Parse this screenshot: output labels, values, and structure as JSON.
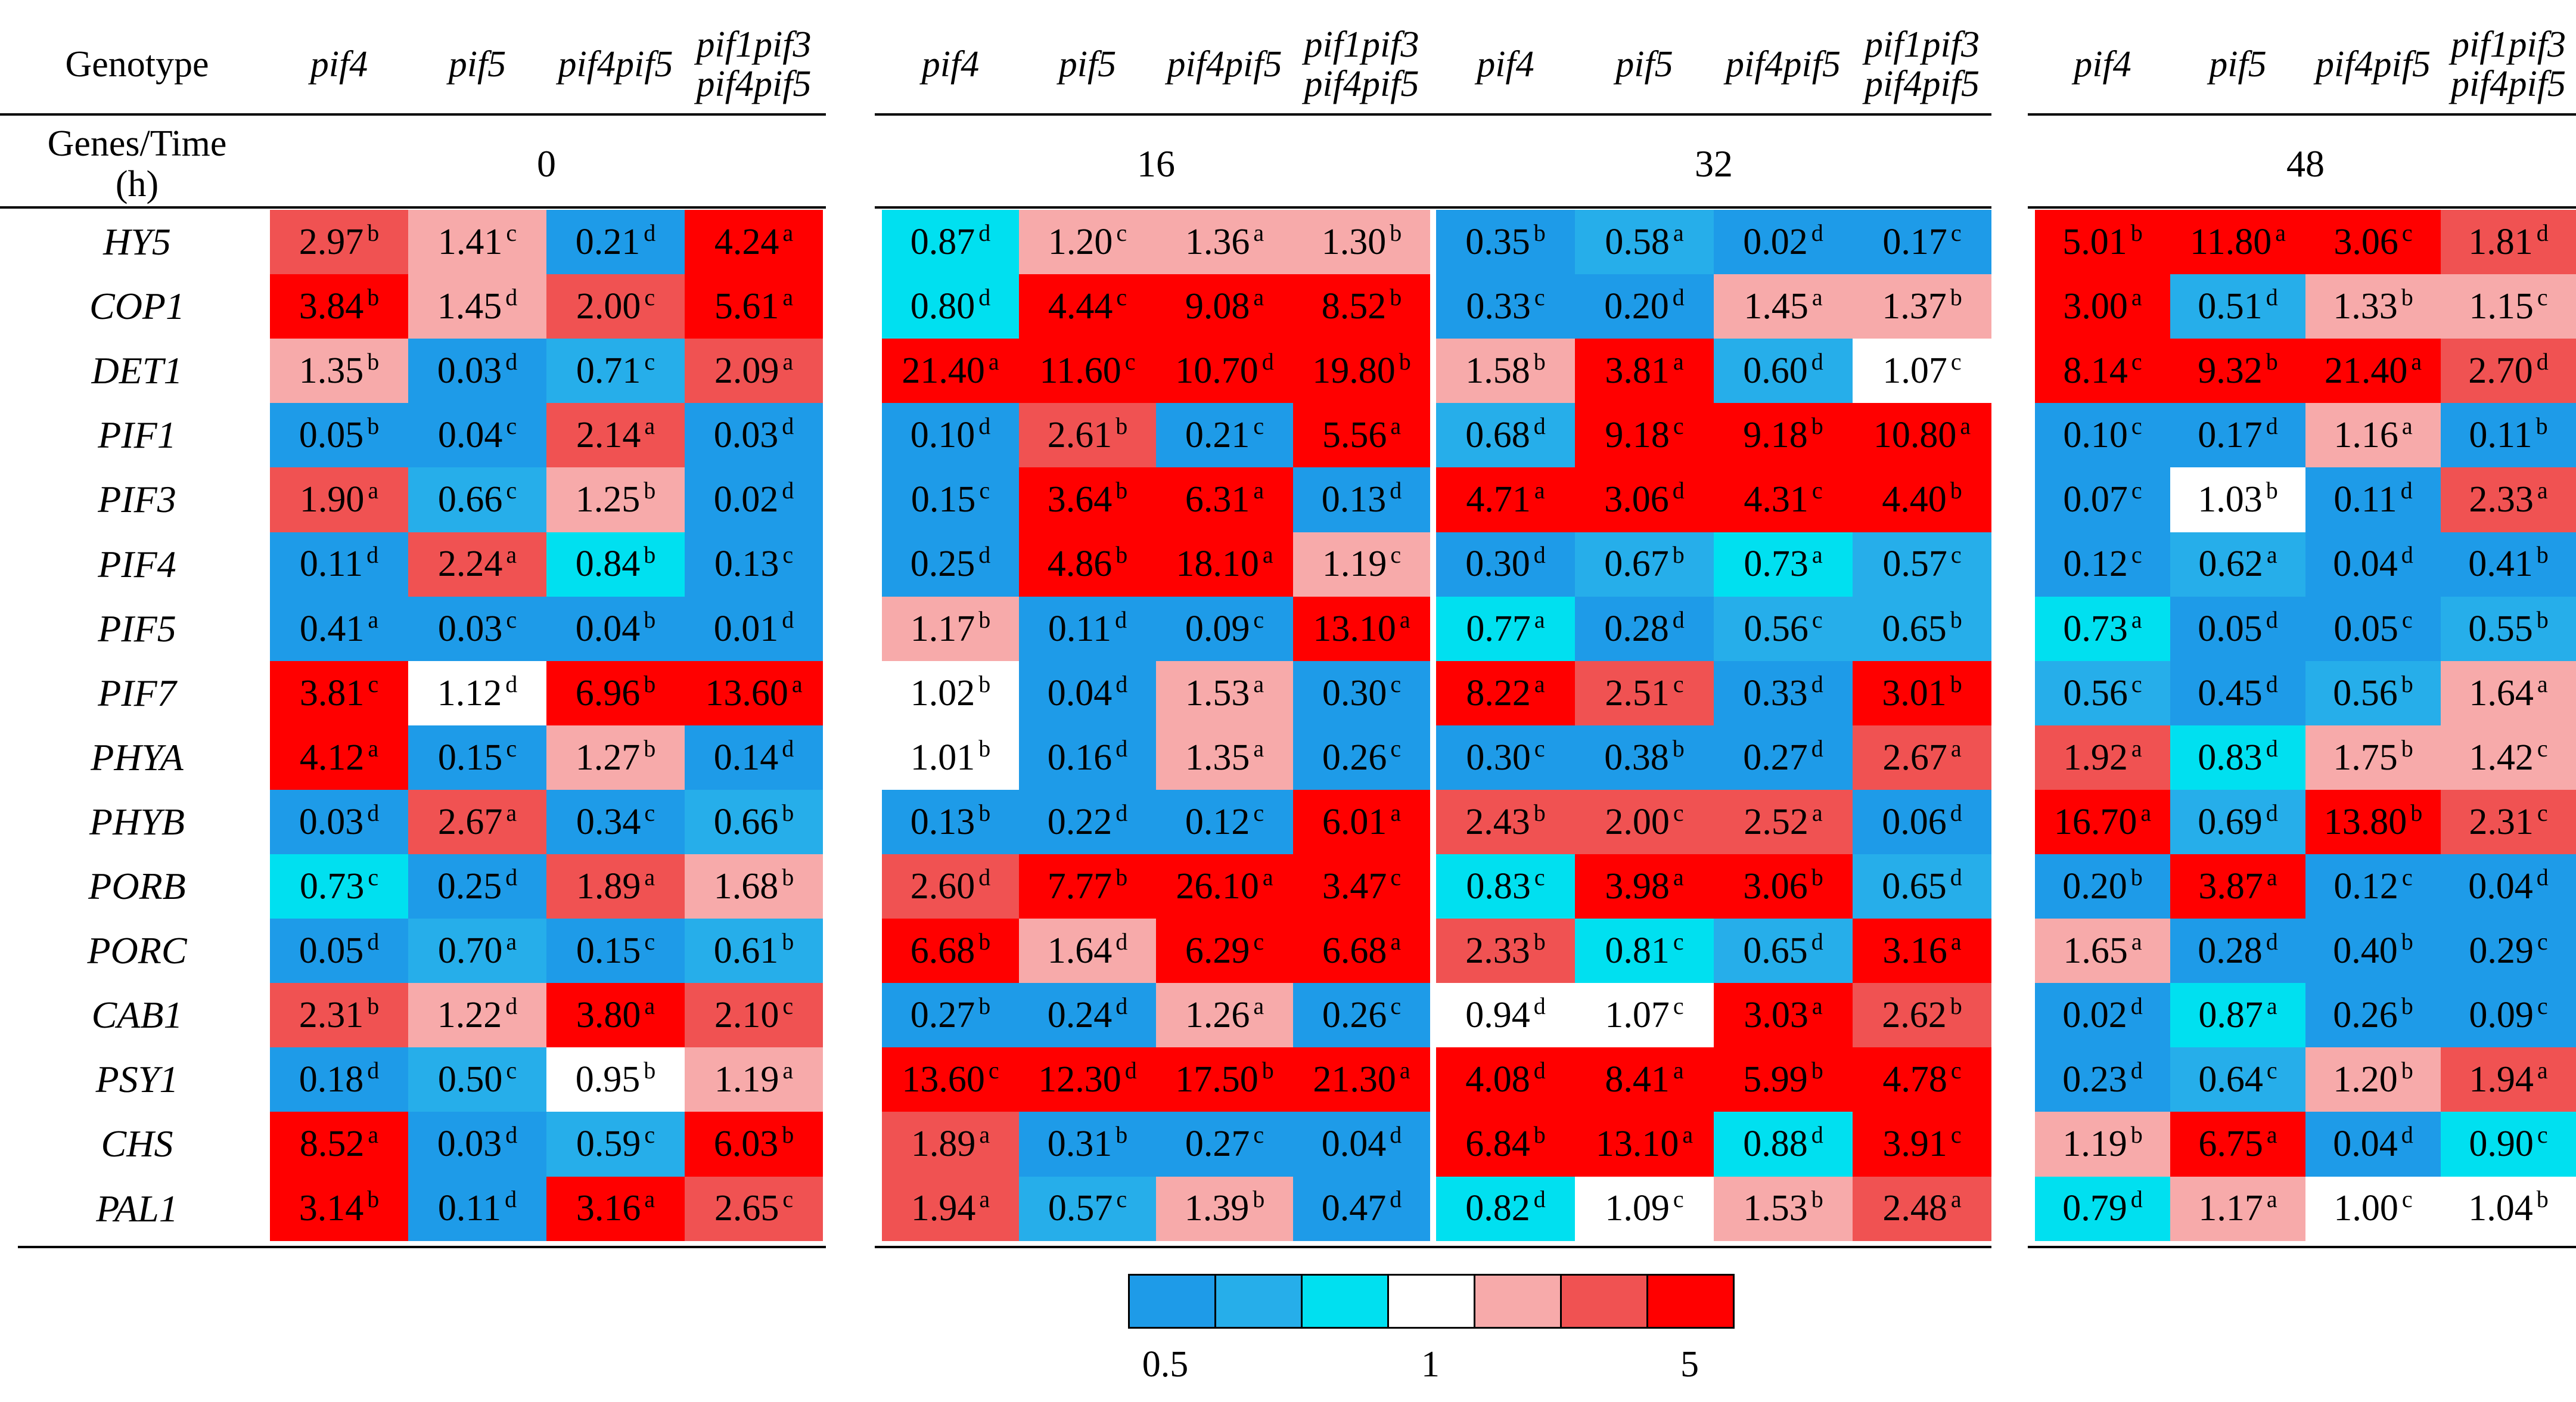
{
  "chart_data": {
    "type": "heatmap",
    "row_header_label": "Genotype",
    "time_header_label": "Genes/Time\n(h)",
    "genotypes": [
      "pif4",
      "pif5",
      "pif4pif5",
      "pif1pif3\npif4pif5"
    ],
    "time_points": [
      "0",
      "16",
      "32",
      "48"
    ],
    "genes": [
      "HY5",
      "COP1",
      "DET1",
      "PIF1",
      "PIF3",
      "PIF4",
      "PIF5",
      "PIF7",
      "PHYA",
      "PHYB",
      "PORB",
      "PORC",
      "CAB1",
      "PSY1",
      "CHS",
      "PAL1"
    ],
    "values": [
      [
        [
          2.97,
          1.41,
          0.21,
          4.24
        ],
        [
          0.87,
          1.2,
          1.36,
          1.3
        ],
        [
          0.35,
          0.58,
          0.02,
          0.17
        ],
        [
          5.01,
          11.8,
          3.06,
          1.81
        ]
      ],
      [
        [
          3.84,
          1.45,
          2.0,
          5.61
        ],
        [
          0.8,
          4.44,
          9.08,
          8.52
        ],
        [
          0.33,
          0.2,
          1.45,
          1.37
        ],
        [
          3.0,
          0.51,
          1.33,
          1.15
        ]
      ],
      [
        [
          1.35,
          0.03,
          0.71,
          2.09
        ],
        [
          21.4,
          11.6,
          10.7,
          19.8
        ],
        [
          1.58,
          3.81,
          0.6,
          1.07
        ],
        [
          8.14,
          9.32,
          21.4,
          2.7
        ]
      ],
      [
        [
          0.05,
          0.04,
          2.14,
          0.03
        ],
        [
          0.1,
          2.61,
          0.21,
          5.56
        ],
        [
          0.68,
          9.18,
          9.18,
          10.8
        ],
        [
          0.1,
          0.17,
          1.16,
          0.11
        ]
      ],
      [
        [
          1.9,
          0.66,
          1.25,
          0.02
        ],
        [
          0.15,
          3.64,
          6.31,
          0.13
        ],
        [
          4.71,
          3.06,
          4.31,
          4.4
        ],
        [
          0.07,
          1.03,
          0.11,
          2.33
        ]
      ],
      [
        [
          0.11,
          2.24,
          0.84,
          0.13
        ],
        [
          0.25,
          4.86,
          18.1,
          1.19
        ],
        [
          0.3,
          0.67,
          0.73,
          0.57
        ],
        [
          0.12,
          0.62,
          0.04,
          0.41
        ]
      ],
      [
        [
          0.41,
          0.03,
          0.04,
          0.01
        ],
        [
          1.17,
          0.11,
          0.09,
          13.1
        ],
        [
          0.77,
          0.28,
          0.56,
          0.65
        ],
        [
          0.73,
          0.05,
          0.05,
          0.55
        ]
      ],
      [
        [
          3.81,
          1.12,
          6.96,
          13.6
        ],
        [
          1.02,
          0.04,
          1.53,
          0.3
        ],
        [
          8.22,
          2.51,
          0.33,
          3.01
        ],
        [
          0.56,
          0.45,
          0.56,
          1.64
        ]
      ],
      [
        [
          4.12,
          0.15,
          1.27,
          0.14
        ],
        [
          1.01,
          0.16,
          1.35,
          0.26
        ],
        [
          0.3,
          0.38,
          0.27,
          2.67
        ],
        [
          1.92,
          0.83,
          1.75,
          1.42
        ]
      ],
      [
        [
          0.03,
          2.67,
          0.34,
          0.66
        ],
        [
          0.13,
          0.22,
          0.12,
          6.01
        ],
        [
          2.43,
          2.0,
          2.52,
          0.06
        ],
        [
          16.7,
          0.69,
          13.8,
          2.31
        ]
      ],
      [
        [
          0.73,
          0.25,
          1.89,
          1.68
        ],
        [
          2.6,
          7.77,
          26.1,
          3.47
        ],
        [
          0.83,
          3.98,
          3.06,
          0.65
        ],
        [
          0.2,
          3.87,
          0.12,
          0.04
        ]
      ],
      [
        [
          0.05,
          0.7,
          0.15,
          0.61
        ],
        [
          6.68,
          1.64,
          6.29,
          6.68
        ],
        [
          2.33,
          0.81,
          0.65,
          3.16
        ],
        [
          1.65,
          0.28,
          0.4,
          0.29
        ]
      ],
      [
        [
          2.31,
          1.22,
          3.8,
          2.1
        ],
        [
          0.27,
          0.24,
          1.26,
          0.26
        ],
        [
          0.94,
          1.07,
          3.03,
          2.62
        ],
        [
          0.02,
          0.87,
          0.26,
          0.09
        ]
      ],
      [
        [
          0.18,
          0.5,
          0.95,
          1.19
        ],
        [
          13.6,
          12.3,
          17.5,
          21.3
        ],
        [
          4.08,
          8.41,
          5.99,
          4.78
        ],
        [
          0.23,
          0.64,
          1.2,
          1.94
        ]
      ],
      [
        [
          8.52,
          0.03,
          0.59,
          6.03
        ],
        [
          1.89,
          0.31,
          0.27,
          0.04
        ],
        [
          6.84,
          13.1,
          0.88,
          3.91
        ],
        [
          1.19,
          6.75,
          0.04,
          0.9
        ]
      ],
      [
        [
          3.14,
          0.11,
          3.16,
          2.65
        ],
        [
          1.94,
          0.57,
          1.39,
          0.47
        ],
        [
          0.82,
          1.09,
          1.53,
          2.48
        ],
        [
          0.79,
          1.17,
          1.0,
          1.04
        ]
      ]
    ],
    "labels": [
      [
        [
          "2.97",
          "1.41",
          "0.21",
          "4.24"
        ],
        [
          "0.87",
          "1.20",
          "1.36",
          "1.30"
        ],
        [
          "0.35",
          "0.58",
          "0.02",
          "0.17"
        ],
        [
          "5.01",
          "11.80",
          "3.06",
          "1.81"
        ]
      ],
      [
        [
          "3.84",
          "1.45",
          "2.00",
          "5.61"
        ],
        [
          "0.80",
          "4.44",
          "9.08",
          "8.52"
        ],
        [
          "0.33",
          "0.20",
          "1.45",
          "1.37"
        ],
        [
          "3.00",
          "0.51",
          "1.33",
          "1.15"
        ]
      ],
      [
        [
          "1.35",
          "0.03",
          "0.71",
          "2.09"
        ],
        [
          "21.40",
          "11.60",
          "10.70",
          "19.80"
        ],
        [
          "1.58",
          "3.81",
          "0.60",
          "1.07"
        ],
        [
          "8.14",
          "9.32",
          "21.40",
          "2.70"
        ]
      ],
      [
        [
          "0.05",
          "0.04",
          "2.14",
          "0.03"
        ],
        [
          "0.10",
          "2.61",
          "0.21",
          "5.56"
        ],
        [
          "0.68",
          "9.18",
          "9.18",
          "10.80"
        ],
        [
          "0.10",
          "0.17",
          "1.16",
          "0.11"
        ]
      ],
      [
        [
          "1.90",
          "0.66",
          "1.25",
          "0.02"
        ],
        [
          "0.15",
          "3.64",
          "6.31",
          "0.13"
        ],
        [
          "4.71",
          "3.06",
          "4.31",
          "4.40"
        ],
        [
          "0.07",
          "1.03",
          "0.11",
          "2.33"
        ]
      ],
      [
        [
          "0.11",
          "2.24",
          "0.84",
          "0.13"
        ],
        [
          "0.25",
          "4.86",
          "18.10",
          "1.19"
        ],
        [
          "0.30",
          "0.67",
          "0.73",
          "0.57"
        ],
        [
          "0.12",
          "0.62",
          "0.04",
          "0.41"
        ]
      ],
      [
        [
          "0.41",
          "0.03",
          "0.04",
          "0.01"
        ],
        [
          "1.17",
          "0.11",
          "0.09",
          "13.10"
        ],
        [
          "0.77",
          "0.28",
          "0.56",
          "0.65"
        ],
        [
          "0.73",
          "0.05",
          "0.05",
          "0.55"
        ]
      ],
      [
        [
          "3.81",
          "1.12",
          "6.96",
          "13.60"
        ],
        [
          "1.02",
          "0.04",
          "1.53",
          "0.30"
        ],
        [
          "8.22",
          "2.51",
          "0.33",
          "3.01"
        ],
        [
          "0.56",
          "0.45",
          "0.56",
          "1.64"
        ]
      ],
      [
        [
          "4.12",
          "0.15",
          "1.27",
          "0.14"
        ],
        [
          "1.01",
          "0.16",
          "1.35",
          "0.26"
        ],
        [
          "0.30",
          "0.38",
          "0.27",
          "2.67"
        ],
        [
          "1.92",
          "0.83",
          "1.75",
          "1.42"
        ]
      ],
      [
        [
          "0.03",
          "2.67",
          "0.34",
          "0.66"
        ],
        [
          "0.13",
          "0.22",
          "0.12",
          "6.01"
        ],
        [
          "2.43",
          "2.00",
          "2.52",
          "0.06"
        ],
        [
          "16.70",
          "0.69",
          "13.80",
          "2.31"
        ]
      ],
      [
        [
          "0.73",
          "0.25",
          "1.89",
          "1.68"
        ],
        [
          "2.60",
          "7.77",
          "26.10",
          "3.47"
        ],
        [
          "0.83",
          "3.98",
          "3.06",
          "0.65"
        ],
        [
          "0.20",
          "3.87",
          "0.12",
          "0.04"
        ]
      ],
      [
        [
          "0.05",
          "0.70",
          "0.15",
          "0.61"
        ],
        [
          "6.68",
          "1.64",
          "6.29",
          "6.68"
        ],
        [
          "2.33",
          "0.81",
          "0.65",
          "3.16"
        ],
        [
          "1.65",
          "0.28",
          "0.40",
          "0.29"
        ]
      ],
      [
        [
          "2.31",
          "1.22",
          "3.80",
          "2.10"
        ],
        [
          "0.27",
          "0.24",
          "1.26",
          "0.26"
        ],
        [
          "0.94",
          "1.07",
          "3.03",
          "2.62"
        ],
        [
          "0.02",
          "0.87",
          "0.26",
          "0.09"
        ]
      ],
      [
        [
          "0.18",
          "0.50",
          "0.95",
          "1.19"
        ],
        [
          "13.60",
          "12.30",
          "17.50",
          "21.30"
        ],
        [
          "4.08",
          "8.41",
          "5.99",
          "4.78"
        ],
        [
          "0.23",
          "0.64",
          "1.20",
          "1.94"
        ]
      ],
      [
        [
          "8.52",
          "0.03",
          "0.59",
          "6.03"
        ],
        [
          "1.89",
          "0.31",
          "0.27",
          "0.04"
        ],
        [
          "6.84",
          "13.10",
          "0.88",
          "3.91"
        ],
        [
          "1.19",
          "6.75",
          "0.04",
          "0.90"
        ]
      ],
      [
        [
          "3.14",
          "0.11",
          "3.16",
          "2.65"
        ],
        [
          "1.94",
          "0.57",
          "1.39",
          "0.47"
        ],
        [
          "0.82",
          "1.09",
          "1.53",
          "2.48"
        ],
        [
          "0.79",
          "1.17",
          "1.00",
          "1.04"
        ]
      ]
    ],
    "letters": [
      [
        [
          "b",
          "c",
          "d",
          "a"
        ],
        [
          "d",
          "c",
          "a",
          "b"
        ],
        [
          "b",
          "a",
          "d",
          "c"
        ],
        [
          "b",
          "a",
          "c",
          "d"
        ]
      ],
      [
        [
          "b",
          "d",
          "c",
          "a"
        ],
        [
          "d",
          "c",
          "a",
          "b"
        ],
        [
          "c",
          "d",
          "a",
          "b"
        ],
        [
          "a",
          "d",
          "b",
          "c"
        ]
      ],
      [
        [
          "b",
          "d",
          "c",
          "a"
        ],
        [
          "a",
          "c",
          "d",
          "b"
        ],
        [
          "b",
          "a",
          "d",
          "c"
        ],
        [
          "c",
          "b",
          "a",
          "d"
        ]
      ],
      [
        [
          "b",
          "c",
          "a",
          "d"
        ],
        [
          "d",
          "b",
          "c",
          "a"
        ],
        [
          "d",
          "c",
          "b",
          "a"
        ],
        [
          "c",
          "d",
          "a",
          "b"
        ]
      ],
      [
        [
          "a",
          "c",
          "b",
          "d"
        ],
        [
          "c",
          "b",
          "a",
          "d"
        ],
        [
          "a",
          "d",
          "c",
          "b"
        ],
        [
          "c",
          "b",
          "d",
          "a"
        ]
      ],
      [
        [
          "d",
          "a",
          "b",
          "c"
        ],
        [
          "d",
          "b",
          "a",
          "c"
        ],
        [
          "d",
          "b",
          "a",
          "c"
        ],
        [
          "c",
          "a",
          "d",
          "b"
        ]
      ],
      [
        [
          "a",
          "c",
          "b",
          "d"
        ],
        [
          "b",
          "d",
          "c",
          "a"
        ],
        [
          "a",
          "d",
          "c",
          "b"
        ],
        [
          "a",
          "d",
          "c",
          "b"
        ]
      ],
      [
        [
          "c",
          "d",
          "b",
          "a"
        ],
        [
          "b",
          "d",
          "a",
          "c"
        ],
        [
          "a",
          "c",
          "d",
          "b"
        ],
        [
          "c",
          "d",
          "b",
          "a"
        ]
      ],
      [
        [
          "a",
          "c",
          "b",
          "d"
        ],
        [
          "b",
          "d",
          "a",
          "c"
        ],
        [
          "c",
          "b",
          "d",
          "a"
        ],
        [
          "a",
          "d",
          "b",
          "c"
        ]
      ],
      [
        [
          "d",
          "a",
          "c",
          "b"
        ],
        [
          "b",
          "d",
          "c",
          "a"
        ],
        [
          "b",
          "c",
          "a",
          "d"
        ],
        [
          "a",
          "d",
          "b",
          "c"
        ]
      ],
      [
        [
          "c",
          "d",
          "a",
          "b"
        ],
        [
          "d",
          "b",
          "a",
          "c"
        ],
        [
          "c",
          "a",
          "b",
          "d"
        ],
        [
          "b",
          "a",
          "c",
          "d"
        ]
      ],
      [
        [
          "d",
          "a",
          "c",
          "b"
        ],
        [
          "b",
          "d",
          "c",
          "a"
        ],
        [
          "b",
          "c",
          "d",
          "a"
        ],
        [
          "a",
          "d",
          "b",
          "c"
        ]
      ],
      [
        [
          "b",
          "d",
          "a",
          "c"
        ],
        [
          "b",
          "d",
          "a",
          "c"
        ],
        [
          "d",
          "c",
          "a",
          "b"
        ],
        [
          "d",
          "a",
          "b",
          "c"
        ]
      ],
      [
        [
          "d",
          "c",
          "b",
          "a"
        ],
        [
          "c",
          "d",
          "b",
          "a"
        ],
        [
          "d",
          "a",
          "b",
          "c"
        ],
        [
          "d",
          "c",
          "b",
          "a"
        ]
      ],
      [
        [
          "a",
          "d",
          "c",
          "b"
        ],
        [
          "a",
          "b",
          "c",
          "d"
        ],
        [
          "b",
          "a",
          "d",
          "c"
        ],
        [
          "b",
          "a",
          "d",
          "c"
        ]
      ],
      [
        [
          "b",
          "d",
          "a",
          "c"
        ],
        [
          "a",
          "c",
          "b",
          "d"
        ],
        [
          "d",
          "c",
          "b",
          "a"
        ],
        [
          "d",
          "a",
          "c",
          "b"
        ]
      ]
    ],
    "color_scale": {
      "bins": [
        "#1e9be8",
        "#26aeea",
        "#00e0f0",
        "#ffffff",
        "#f7aaaa",
        "#f05252",
        "#ff0000"
      ],
      "tick_labels": [
        "0.5",
        "1",
        "5"
      ],
      "tick_values": [
        0.5,
        1,
        5
      ],
      "scale": "log"
    }
  }
}
